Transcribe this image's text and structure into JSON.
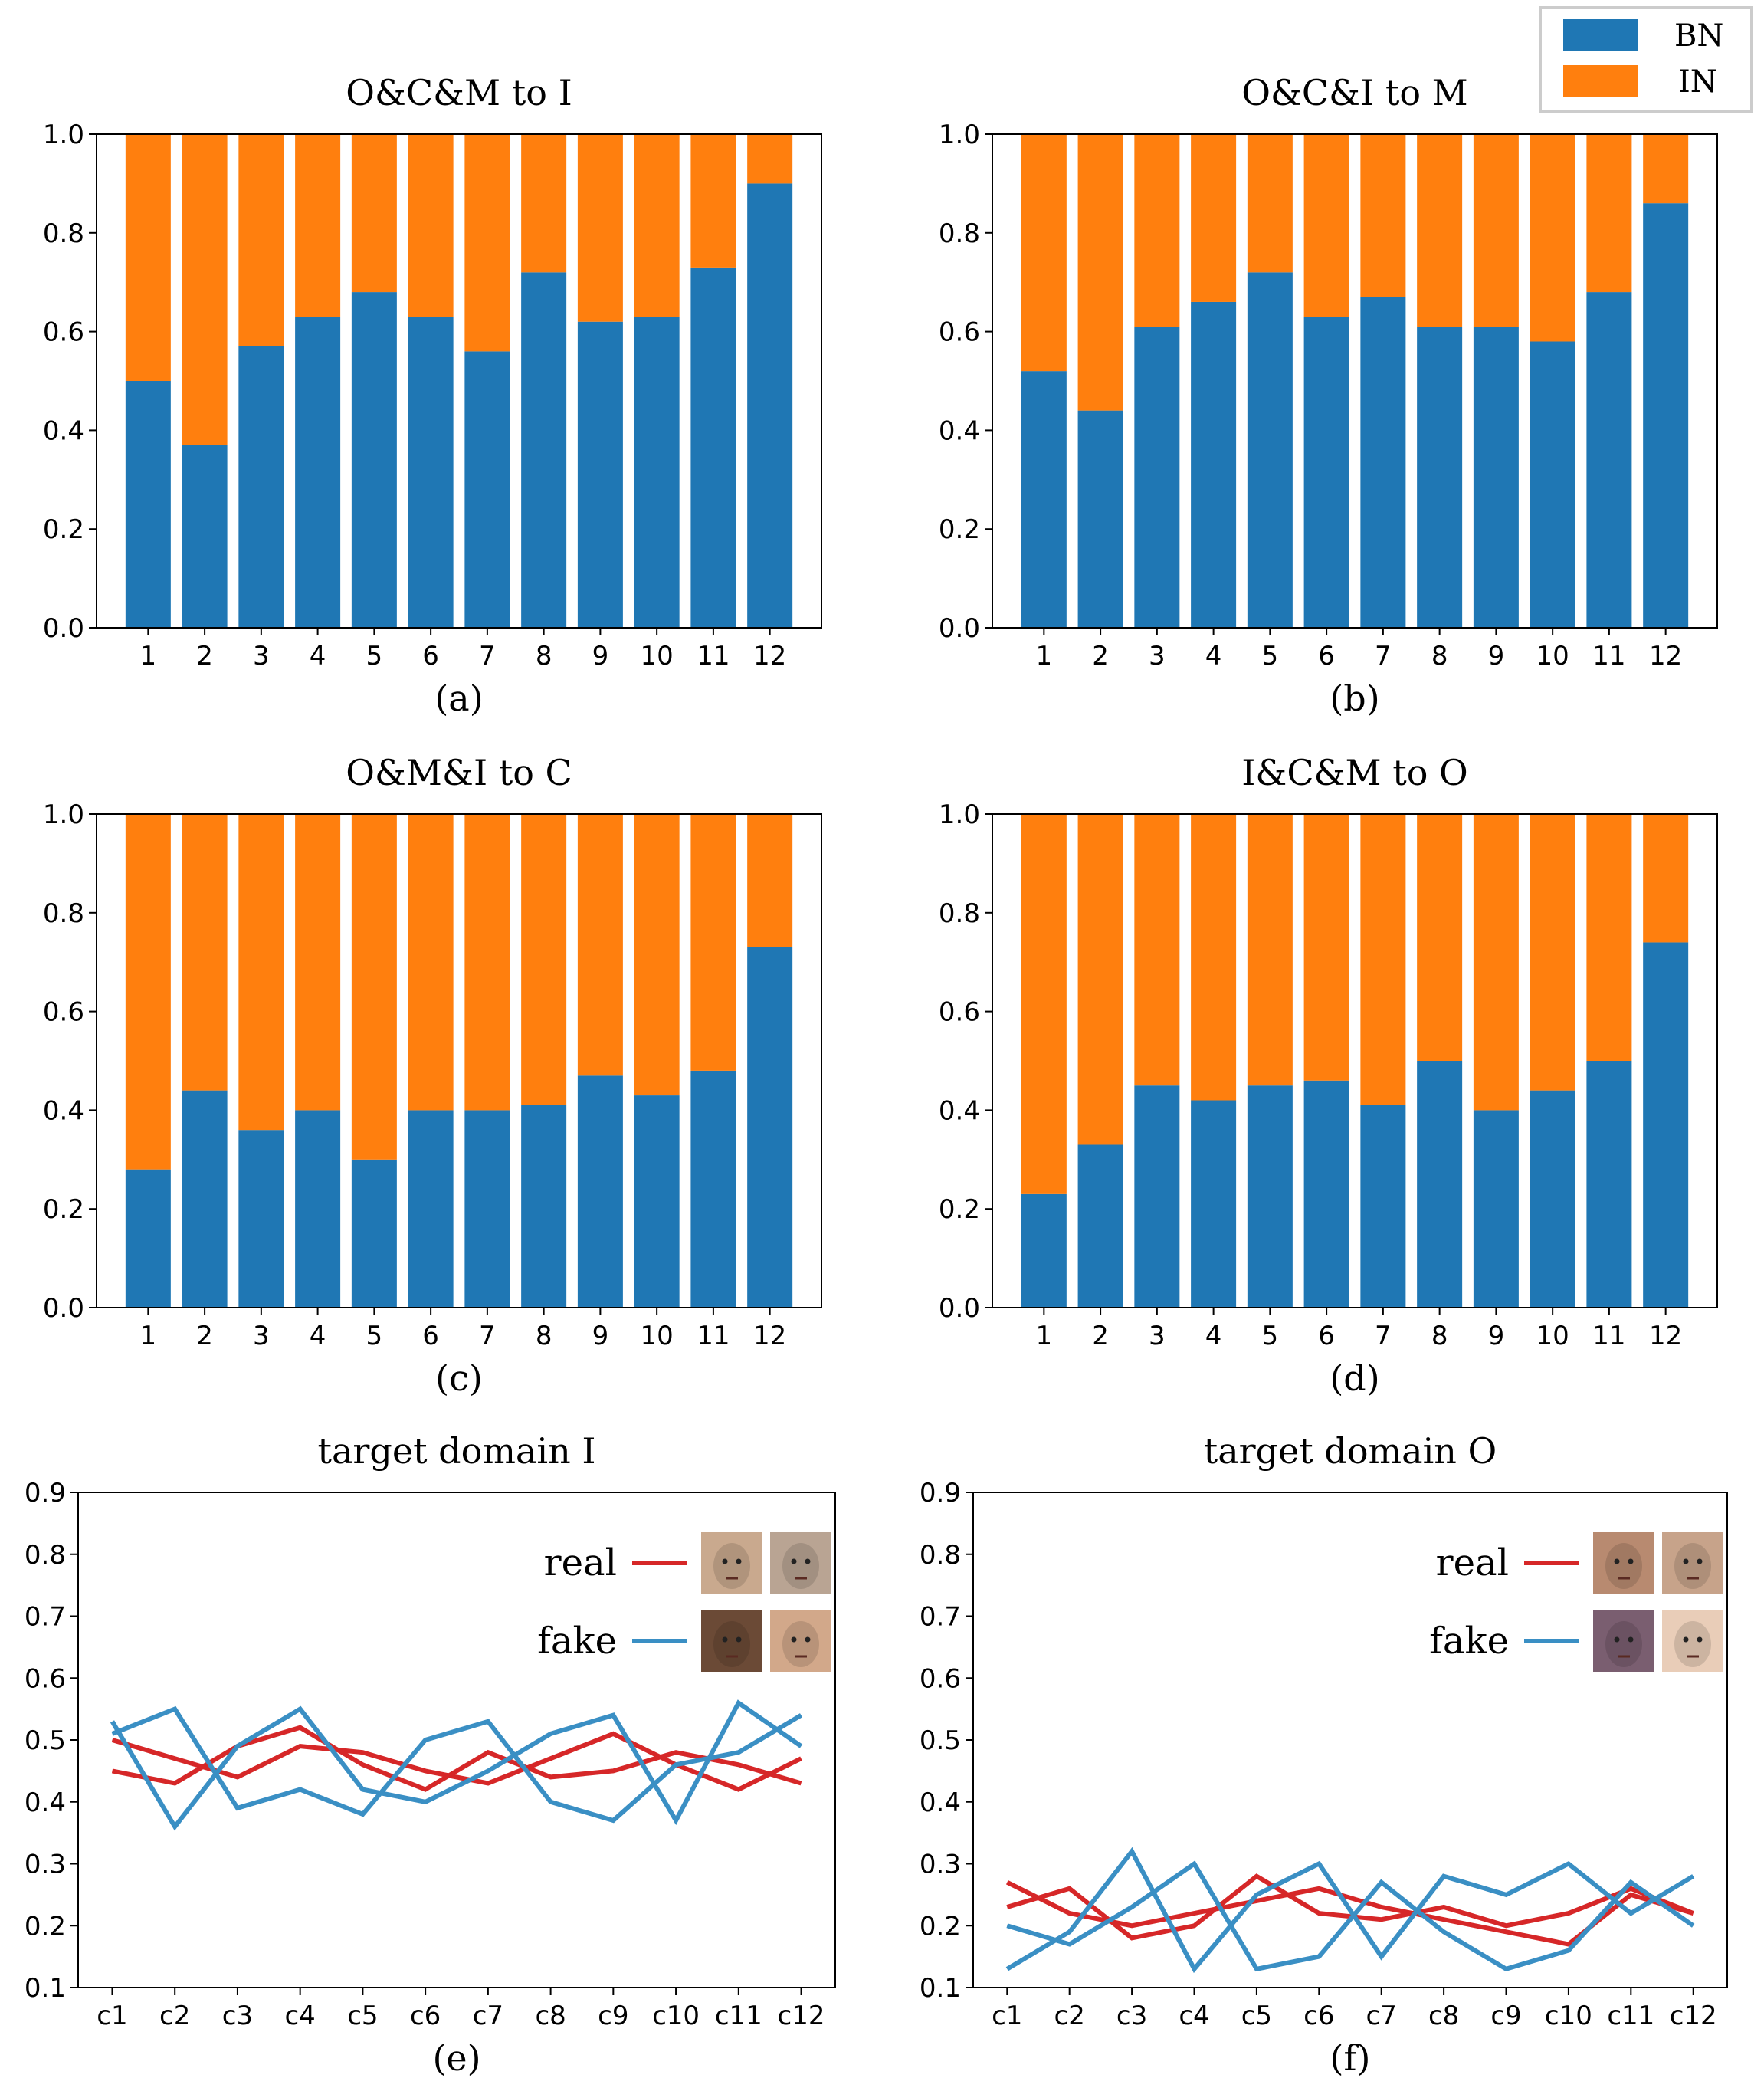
{
  "colors": {
    "bn": "#1f77b4",
    "in": "#ff7f0e",
    "real": "#d62728",
    "fake": "#3a8fc4"
  },
  "legend": {
    "bn_label": "BN",
    "in_label": "IN"
  },
  "chart_data": [
    {
      "type": "bar",
      "stacked": true,
      "label": "(a)",
      "title": "O&C&M to I",
      "categories": [
        "1",
        "2",
        "3",
        "4",
        "5",
        "6",
        "7",
        "8",
        "9",
        "10",
        "11",
        "12"
      ],
      "series": [
        {
          "name": "BN",
          "values": [
            0.5,
            0.37,
            0.57,
            0.63,
            0.68,
            0.63,
            0.56,
            0.72,
            0.62,
            0.63,
            0.73,
            0.9
          ]
        },
        {
          "name": "IN",
          "values": [
            0.5,
            0.63,
            0.43,
            0.37,
            0.32,
            0.37,
            0.44,
            0.28,
            0.38,
            0.37,
            0.27,
            0.1
          ]
        }
      ],
      "ylim": [
        0,
        1.0
      ],
      "yticks": [
        "0.0",
        "0.2",
        "0.4",
        "0.6",
        "0.8",
        "1.0"
      ]
    },
    {
      "type": "bar",
      "stacked": true,
      "label": "(b)",
      "title": "O&C&I to M",
      "categories": [
        "1",
        "2",
        "3",
        "4",
        "5",
        "6",
        "7",
        "8",
        "9",
        "10",
        "11",
        "12"
      ],
      "series": [
        {
          "name": "BN",
          "values": [
            0.52,
            0.44,
            0.61,
            0.66,
            0.72,
            0.63,
            0.67,
            0.61,
            0.61,
            0.58,
            0.68,
            0.86
          ]
        },
        {
          "name": "IN",
          "values": [
            0.48,
            0.56,
            0.39,
            0.34,
            0.28,
            0.37,
            0.33,
            0.39,
            0.39,
            0.42,
            0.32,
            0.14
          ]
        }
      ],
      "ylim": [
        0,
        1.0
      ],
      "yticks": [
        "0.0",
        "0.2",
        "0.4",
        "0.6",
        "0.8",
        "1.0"
      ]
    },
    {
      "type": "bar",
      "stacked": true,
      "label": "(c)",
      "title": "O&M&I to C",
      "categories": [
        "1",
        "2",
        "3",
        "4",
        "5",
        "6",
        "7",
        "8",
        "9",
        "10",
        "11",
        "12"
      ],
      "series": [
        {
          "name": "BN",
          "values": [
            0.28,
            0.44,
            0.36,
            0.4,
            0.3,
            0.4,
            0.4,
            0.41,
            0.47,
            0.43,
            0.48,
            0.73
          ]
        },
        {
          "name": "IN",
          "values": [
            0.72,
            0.56,
            0.64,
            0.6,
            0.7,
            0.6,
            0.6,
            0.59,
            0.53,
            0.57,
            0.52,
            0.27
          ]
        }
      ],
      "ylim": [
        0,
        1.0
      ],
      "yticks": [
        "0.0",
        "0.2",
        "0.4",
        "0.6",
        "0.8",
        "1.0"
      ]
    },
    {
      "type": "bar",
      "stacked": true,
      "label": "(d)",
      "title": "I&C&M to O",
      "categories": [
        "1",
        "2",
        "3",
        "4",
        "5",
        "6",
        "7",
        "8",
        "9",
        "10",
        "11",
        "12"
      ],
      "series": [
        {
          "name": "BN",
          "values": [
            0.23,
            0.33,
            0.45,
            0.42,
            0.45,
            0.46,
            0.41,
            0.5,
            0.4,
            0.44,
            0.5,
            0.74
          ]
        },
        {
          "name": "IN",
          "values": [
            0.77,
            0.67,
            0.55,
            0.58,
            0.55,
            0.54,
            0.59,
            0.5,
            0.6,
            0.56,
            0.5,
            0.26
          ]
        }
      ],
      "ylim": [
        0,
        1.0
      ],
      "yticks": [
        "0.0",
        "0.2",
        "0.4",
        "0.6",
        "0.8",
        "1.0"
      ]
    },
    {
      "type": "line",
      "label": "(e)",
      "title": "target domain I",
      "categories": [
        "c1",
        "c2",
        "c3",
        "c4",
        "c5",
        "c6",
        "c7",
        "c8",
        "c9",
        "c10",
        "c11",
        "c12"
      ],
      "series": [
        {
          "name": "real",
          "values": [
            0.5,
            0.47,
            0.44,
            0.49,
            0.48,
            0.45,
            0.43,
            0.47,
            0.51,
            0.46,
            0.42,
            0.47
          ]
        },
        {
          "name": "real",
          "values": [
            0.45,
            0.43,
            0.49,
            0.52,
            0.46,
            0.42,
            0.48,
            0.44,
            0.45,
            0.48,
            0.46,
            0.43
          ]
        },
        {
          "name": "fake",
          "values": [
            0.53,
            0.36,
            0.49,
            0.55,
            0.42,
            0.4,
            0.45,
            0.51,
            0.54,
            0.37,
            0.56,
            0.49
          ]
        },
        {
          "name": "fake",
          "values": [
            0.51,
            0.55,
            0.39,
            0.42,
            0.38,
            0.5,
            0.53,
            0.4,
            0.37,
            0.46,
            0.48,
            0.54
          ]
        }
      ],
      "ylim": [
        0.1,
        0.9
      ],
      "yticks": [
        "0.1",
        "0.2",
        "0.3",
        "0.4",
        "0.5",
        "0.6",
        "0.7",
        "0.8",
        "0.9"
      ],
      "legend": [
        "real",
        "fake"
      ]
    },
    {
      "type": "line",
      "label": "(f)",
      "title": "target domain O",
      "categories": [
        "c1",
        "c2",
        "c3",
        "c4",
        "c5",
        "c6",
        "c7",
        "c8",
        "c9",
        "c10",
        "c11",
        "c12"
      ],
      "series": [
        {
          "name": "real",
          "values": [
            0.27,
            0.22,
            0.2,
            0.22,
            0.24,
            0.26,
            0.23,
            0.21,
            0.19,
            0.17,
            0.25,
            0.22
          ]
        },
        {
          "name": "real",
          "values": [
            0.23,
            0.26,
            0.18,
            0.2,
            0.28,
            0.22,
            0.21,
            0.23,
            0.2,
            0.22,
            0.26,
            0.22
          ]
        },
        {
          "name": "fake",
          "values": [
            0.13,
            0.19,
            0.32,
            0.13,
            0.25,
            0.3,
            0.15,
            0.28,
            0.25,
            0.3,
            0.22,
            0.28
          ]
        },
        {
          "name": "fake",
          "values": [
            0.2,
            0.17,
            0.23,
            0.3,
            0.13,
            0.15,
            0.27,
            0.19,
            0.13,
            0.16,
            0.27,
            0.2
          ]
        }
      ],
      "ylim": [
        0.1,
        0.9
      ],
      "yticks": [
        "0.1",
        "0.2",
        "0.3",
        "0.4",
        "0.5",
        "0.6",
        "0.7",
        "0.8",
        "0.9"
      ],
      "legend": [
        "real",
        "fake"
      ]
    }
  ]
}
